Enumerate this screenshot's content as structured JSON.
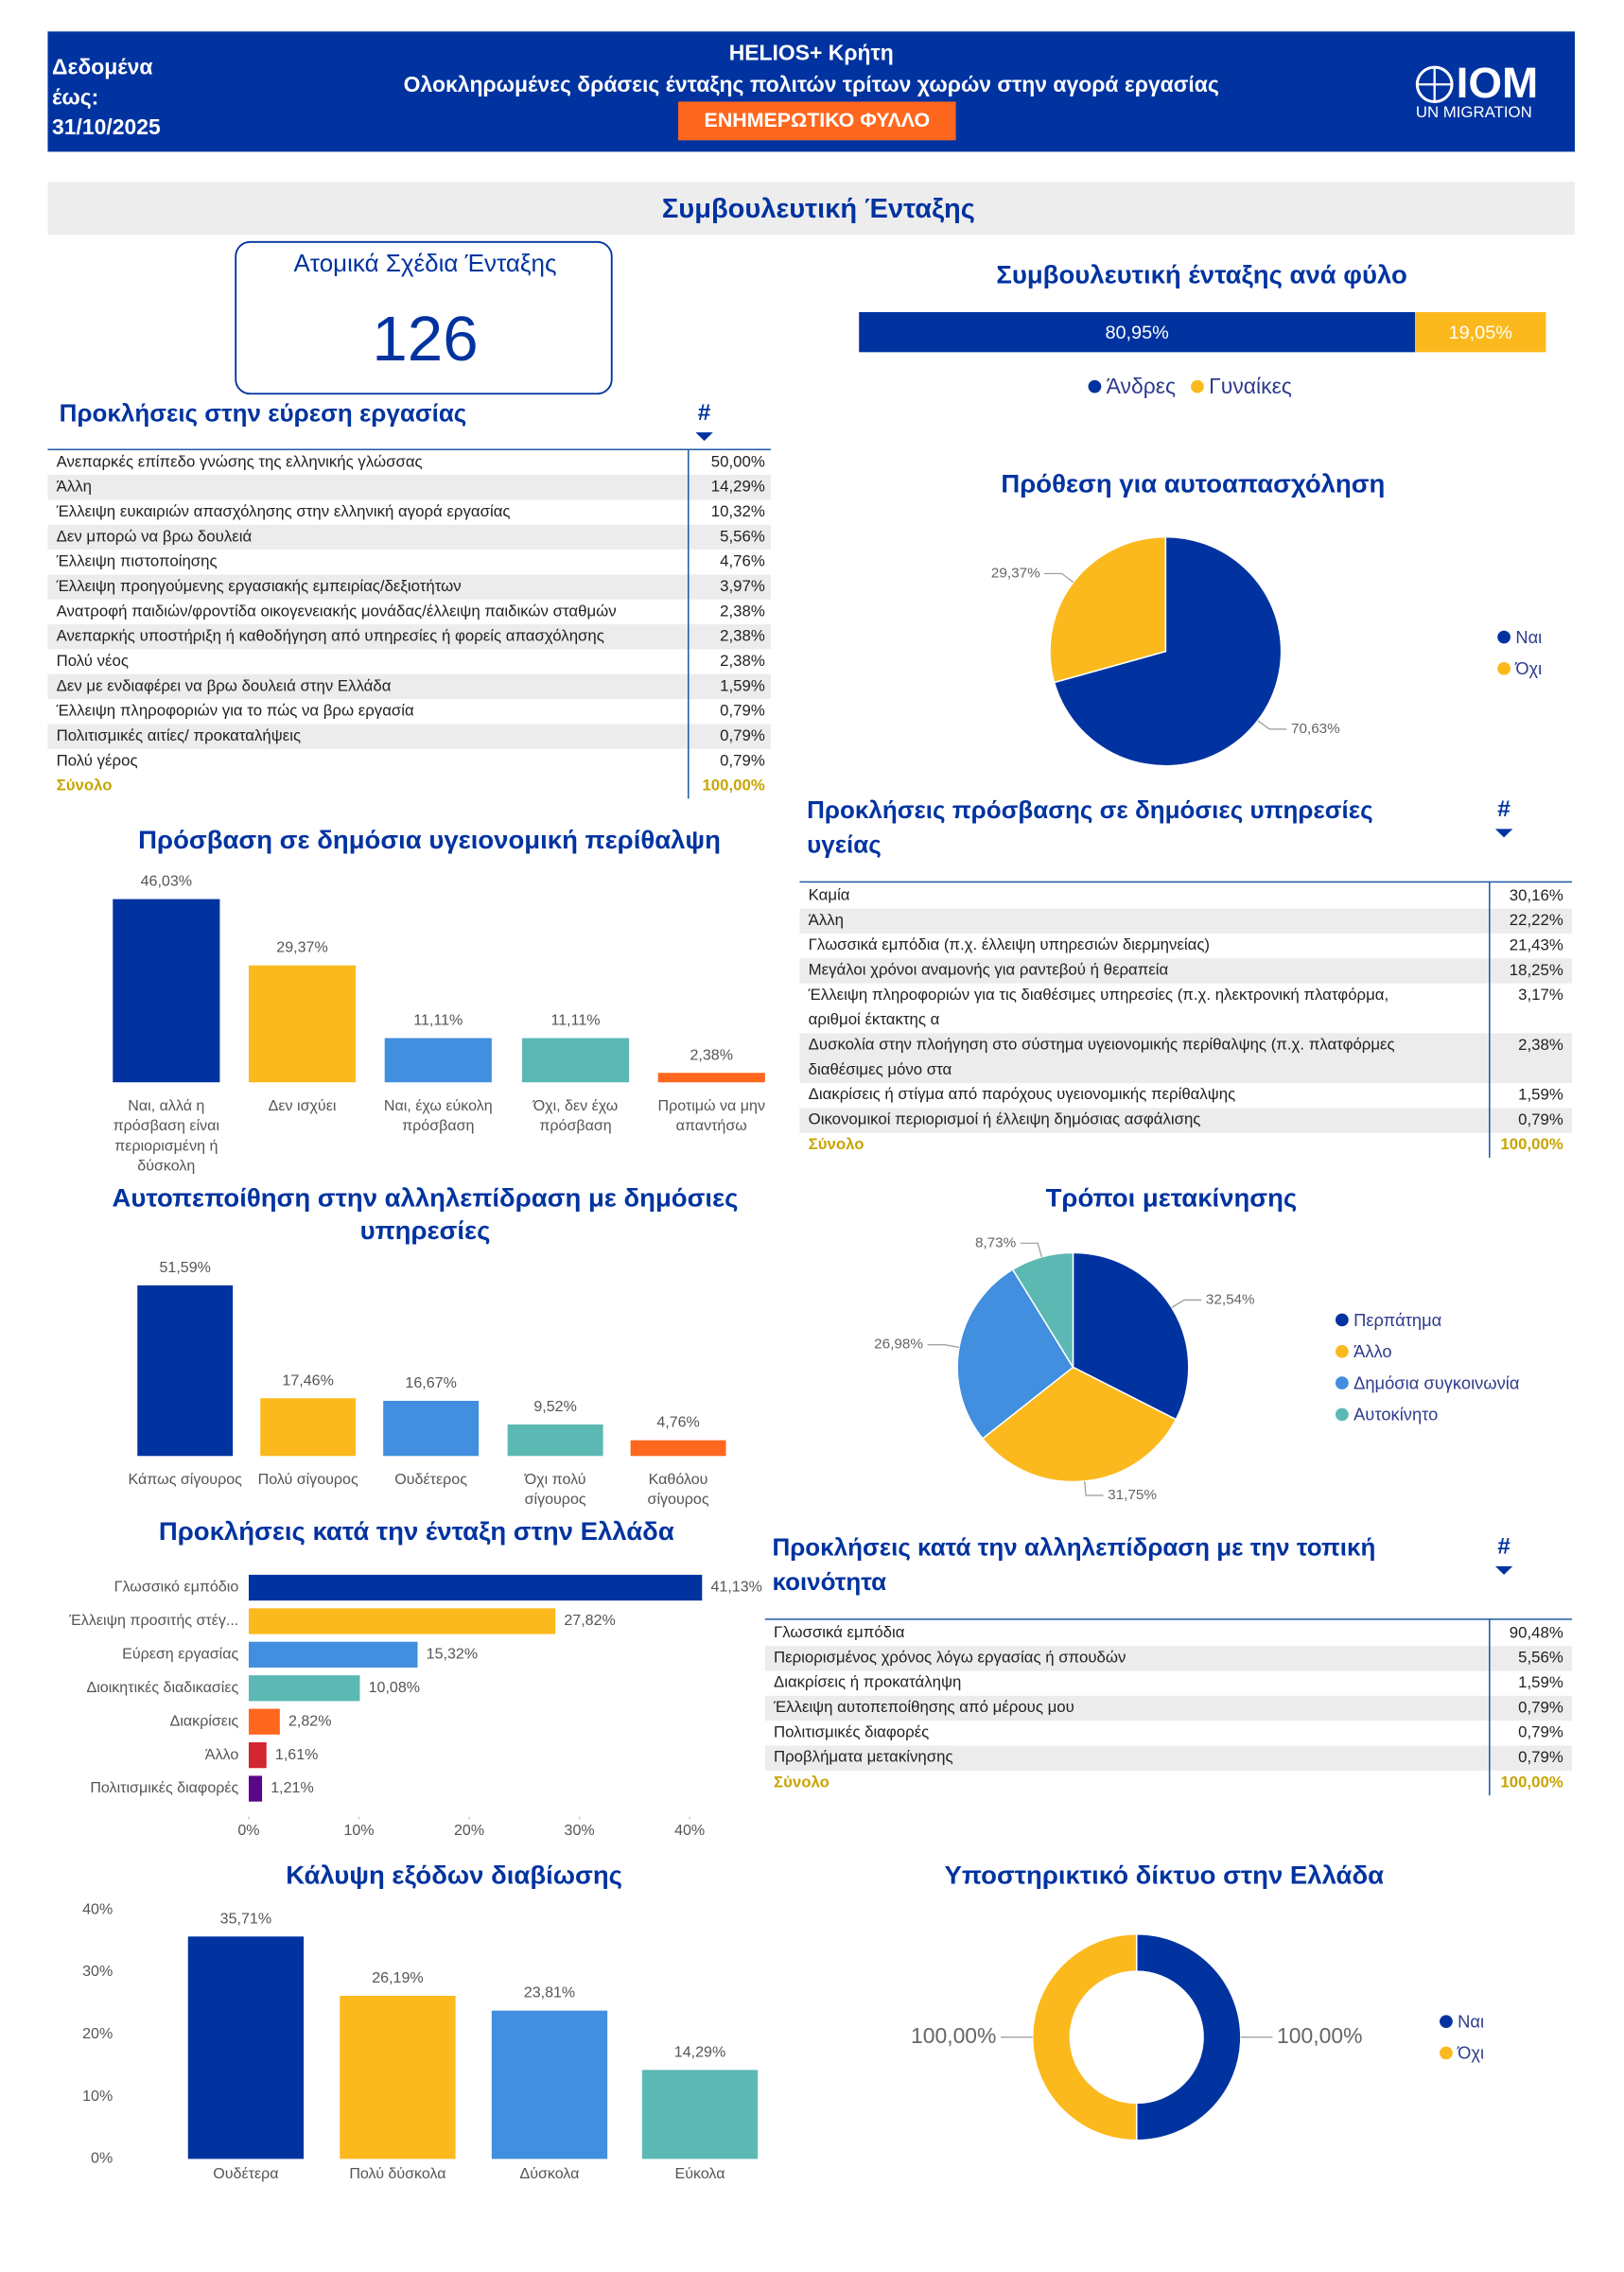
{
  "header": {
    "date_label": "Δεδομένα έως: 31/10/2025",
    "title": "HELIOS+ Κρήτη",
    "subtitle": "Ολοκληρωμένες δράσεις ένταξης πολιτών τρίτων χωρών στην αγορά εργασίας",
    "badge": "ΕΝΗΜΕΡΩΤΙΚΟ ΦΥΛΛΟ",
    "logo": "IOM",
    "logo_sub": "UN MIGRATION"
  },
  "section_title": "Συμβουλευτική Ένταξης",
  "kpi": {
    "label": "Ατομικά Σχέδια Ένταξης",
    "value": 126
  },
  "tables": [
    {
      "title": "Προκλήσεις στην εύρεση εργασίας",
      "hash": "#",
      "rows": [
        [
          "Ανεπαρκές επίπεδο γνώσης της ελληνικής γλώσσας",
          "50,00%"
        ],
        [
          "Άλλη",
          "14,29%"
        ],
        [
          "Έλλειψη ευκαιριών απασχόλησης στην ελληνική αγορά εργασίας",
          "10,32%"
        ],
        [
          "Δεν μπορώ να βρω δουλειά",
          "5,56%"
        ],
        [
          "Έλλειψη πιστοποίησης",
          "4,76%"
        ],
        [
          "Έλλειψη προηγούμενης εργασιακής εμπειρίας/δεξιοτήτων",
          "3,97%"
        ],
        [
          "Ανατροφή παιδιών/φροντίδα οικογενειακής μονάδας/έλλειψη παιδικών σταθμών",
          "2,38%"
        ],
        [
          "Ανεπαρκής υποστήριξη ή καθοδήγηση από υπηρεσίες ή φορείς απασχόλησης",
          "2,38%"
        ],
        [
          "Πολύ νέος",
          "2,38%"
        ],
        [
          "Δεν με ενδιαφέρει να βρω δουλειά στην Ελλάδα",
          "1,59%"
        ],
        [
          "Έλλειψη πληροφοριών για το πώς να βρω εργασία",
          "0,79%"
        ],
        [
          "Πολιτισμικές αιτίες/ προκαταλήψεις",
          "0,79%"
        ],
        [
          "Πολύ γέρος",
          "0,79%"
        ]
      ],
      "total": [
        "Σύνολο",
        "100,00%"
      ]
    },
    {
      "title": "Προκλήσεις πρόσβασης σε δημόσιες υπηρεσίες υγείας",
      "hash": "#",
      "rows": [
        [
          "Καμία",
          "30,16%"
        ],
        [
          "Άλλη",
          "22,22%"
        ],
        [
          "Γλωσσικά εμπόδια (π.χ. έλλειψη υπηρεσιών διερμηνείας)",
          "21,43%"
        ],
        [
          "Μεγάλοι χρόνοι αναμονής για ραντεβού ή θεραπεία",
          "18,25%"
        ],
        [
          "Έλλειψη πληροφοριών για τις διαθέσιμες υπηρεσίες (π.χ. ηλεκτρονική πλατφόρμα, αριθμοί έκτακτης α",
          "3,17%"
        ],
        [
          "Δυσκολία στην πλοήγηση στο σύστημα υγειονομικής περίθαλψης (π.χ. πλατφόρμες διαθέσιμες μόνο στα",
          "2,38%"
        ],
        [
          "Διακρίσεις ή στίγμα από παρόχους υγειονομικής περίθαλψης",
          "1,59%"
        ],
        [
          "Οικονομικοί περιορισμοί ή έλλειψη δημόσιας ασφάλισης",
          "0,79%"
        ]
      ],
      "total": [
        "Σύνολο",
        "100,00%"
      ]
    },
    {
      "title": "Προκλήσεις κατά την αλληλεπίδραση με την τοπική κοινότητα",
      "hash": "#",
      "rows": [
        [
          "Γλωσσικά εμπόδια",
          "90,48%"
        ],
        [
          "Περιορισμένος χρόνος λόγω εργασίας ή σπουδών",
          "5,56%"
        ],
        [
          "Διακρίσεις ή προκατάληψη",
          "1,59%"
        ],
        [
          "Έλλειψη αυτοπεποίθησης από μέρους μου",
          "0,79%"
        ],
        [
          "Πολιτισμικές διαφορές",
          "0,79%"
        ],
        [
          "Προβλήματα μετακίνησης",
          "0,79%"
        ]
      ],
      "total": [
        "Σύνολο",
        "100,00%"
      ]
    }
  ],
  "chart_data": [
    {
      "type": "stacked_bar",
      "title": "Συμβουλευτική ένταξης ανά φύλο",
      "legend": "bottom",
      "series": [
        {
          "name": "Άνδρες",
          "color": "#0033a0",
          "values": [
            80.95
          ],
          "value_labels": [
            "80,95%"
          ]
        },
        {
          "name": "Γυναίκες",
          "color": "#fbb91d",
          "values": [
            19.05
          ],
          "value_labels": [
            "19,05%"
          ]
        }
      ]
    },
    {
      "type": "pie",
      "title": "Πρόθεση για αυτοαπασχόληση",
      "legend": "right",
      "categories": [
        "Ναι",
        "Όχι"
      ],
      "values": [
        70.63,
        29.37
      ],
      "value_labels": [
        "70,63%",
        "29,37%"
      ],
      "colors": [
        "#0033a0",
        "#fbb91d"
      ]
    },
    {
      "type": "bar",
      "title": "Πρόσβαση σε δημόσια υγειονομική περίθαλψη",
      "categories": [
        "Ναι, αλλά η πρόσβαση είναι περιορισμένη ή δύσκολη",
        "Δεν ισχύει",
        "Ναι, έχω εύκολη πρόσβαση",
        "Όχι, δεν έχω πρόσβαση",
        "Προτιμώ να μην απαντήσω"
      ],
      "values": [
        46.03,
        29.37,
        11.11,
        11.11,
        2.38
      ],
      "value_labels": [
        "46,03%",
        "29,37%",
        "11,11%",
        "11,11%",
        "2,38%"
      ],
      "colors": [
        "#0033a0",
        "#fbb91d",
        "#418fde",
        "#5cb8b2",
        "#ff671f"
      ]
    },
    {
      "type": "bar",
      "title": "Αυτοπεποίθηση στην αλληλεπίδραση με δημόσιες υπηρεσίες",
      "categories": [
        "Κάπως σίγουρος",
        "Πολύ σίγουρος",
        "Ουδέτερος",
        "Όχι πολύ σίγουρος",
        "Καθόλου σίγουρος"
      ],
      "values": [
        51.59,
        17.46,
        16.67,
        9.52,
        4.76
      ],
      "value_labels": [
        "51,59%",
        "17,46%",
        "16,67%",
        "9,52%",
        "4,76%"
      ],
      "colors": [
        "#0033a0",
        "#fbb91d",
        "#418fde",
        "#5cb8b2",
        "#ff671f"
      ]
    },
    {
      "type": "pie",
      "title": "Τρόποι μετακίνησης",
      "legend": "right",
      "categories": [
        "Περπάτημα",
        "Άλλο",
        "Δημόσια συγκοινωνία",
        "Αυτοκίνητο"
      ],
      "values": [
        32.54,
        31.75,
        26.98,
        8.73
      ],
      "value_labels": [
        "32,54%",
        "31,75%",
        "26,98%",
        "8,73%"
      ],
      "colors": [
        "#0033a0",
        "#fbb91d",
        "#418fde",
        "#5cb8b2"
      ]
    },
    {
      "type": "bar",
      "orientation": "horizontal",
      "title": "Προκλήσεις κατά την ένταξη στην Ελλάδα",
      "categories": [
        "Γλωσσικό εμπόδιο",
        "Έλλειψη προσιτής στέγ...",
        "Εύρεση εργασίας",
        "Διοικητικές διαδικασίες",
        "Διακρίσεις",
        "Άλλο",
        "Πολιτισμικές διαφορές"
      ],
      "values": [
        41.13,
        27.82,
        15.32,
        10.08,
        2.82,
        1.61,
        1.21
      ],
      "value_labels": [
        "41,13%",
        "27,82%",
        "15,32%",
        "10,08%",
        "2,82%",
        "1,61%",
        "1,21%"
      ],
      "colors": [
        "#0033a0",
        "#fbb91d",
        "#418fde",
        "#5cb8b2",
        "#ff671f",
        "#d22630",
        "#5c068c"
      ],
      "xlim": [
        0,
        45
      ],
      "xticks": [
        {
          "value": 0,
          "label": "0%"
        },
        {
          "value": 10,
          "label": "10%"
        },
        {
          "value": 20,
          "label": "20%"
        },
        {
          "value": 30,
          "label": "30%"
        },
        {
          "value": 40,
          "label": "40%"
        }
      ]
    },
    {
      "type": "bar",
      "title": "Κάλυψη εξόδων διαβίωσης",
      "categories": [
        "Ουδέτερα",
        "Πολύ δύσκολα",
        "Δύσκολα",
        "Εύκολα"
      ],
      "values": [
        35.71,
        26.19,
        23.81,
        14.29
      ],
      "value_labels": [
        "35,71%",
        "26,19%",
        "23,81%",
        "14,29%"
      ],
      "colors": [
        "#0033a0",
        "#fbb91d",
        "#418fde",
        "#5cb8b2"
      ],
      "ylim": [
        0,
        40
      ],
      "yticks": [
        {
          "value": 0,
          "label": "0%"
        },
        {
          "value": 10,
          "label": "10%"
        },
        {
          "value": 20,
          "label": "20%"
        },
        {
          "value": 30,
          "label": "30%"
        },
        {
          "value": 40,
          "label": "40%"
        }
      ]
    },
    {
      "type": "pie",
      "donut": true,
      "title": "Υποστηρικτικό δίκτυο στην Ελλάδα",
      "legend": "right",
      "categories": [
        "Ναι",
        "Όχι"
      ],
      "values": [
        100,
        100
      ],
      "value_labels": [
        "100,00%",
        "100,00%"
      ],
      "colors": [
        "#0033a0",
        "#fbb91d"
      ]
    }
  ]
}
